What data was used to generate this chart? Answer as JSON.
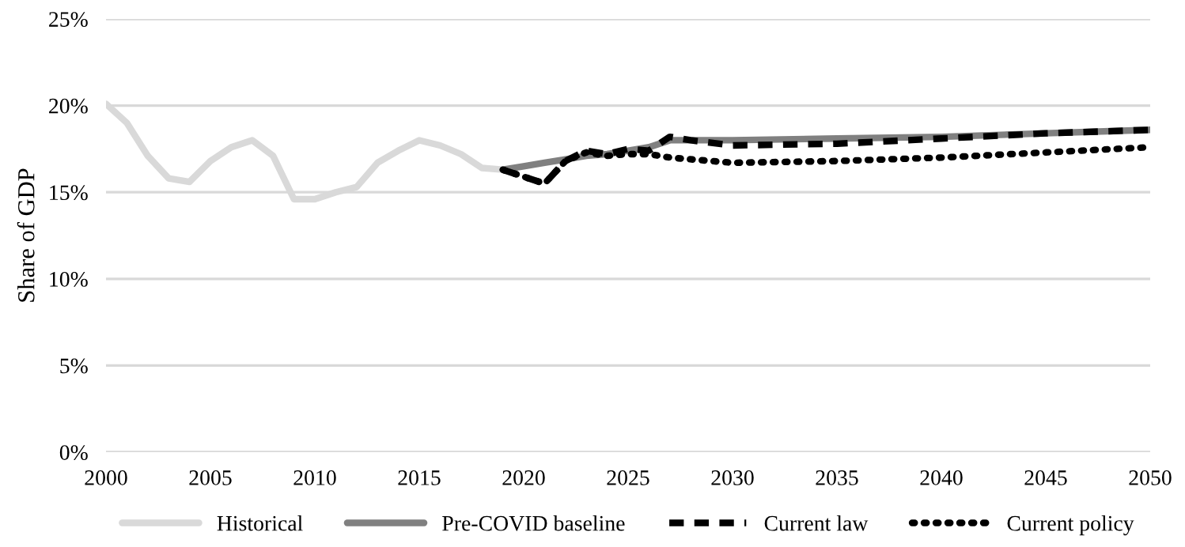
{
  "chart_data": {
    "type": "line",
    "ylabel": "Share of GDP",
    "xlim": [
      2000,
      2050
    ],
    "xticks": [
      2000,
      2005,
      2010,
      2015,
      2020,
      2025,
      2030,
      2035,
      2040,
      2045,
      2050
    ],
    "ylim": [
      0,
      25
    ],
    "yticks": [
      {
        "value": 0,
        "label": "0%"
      },
      {
        "value": 5,
        "label": "5%"
      },
      {
        "value": 10,
        "label": "10%"
      },
      {
        "value": 15,
        "label": "15%"
      },
      {
        "value": 20,
        "label": "20%"
      },
      {
        "value": 25,
        "label": "25%"
      }
    ],
    "grid": "y",
    "legend": "bottom",
    "series": [
      {
        "name": "Historical",
        "color": "#d9d9d9",
        "line_style": "solid",
        "x": [
          2000,
          2001,
          2002,
          2003,
          2004,
          2005,
          2006,
          2007,
          2008,
          2009,
          2010,
          2011,
          2012,
          2013,
          2014,
          2015,
          2016,
          2017,
          2018,
          2019
        ],
        "values": [
          20.1,
          19.0,
          17.1,
          15.8,
          15.6,
          16.8,
          17.6,
          18.0,
          17.1,
          14.6,
          14.6,
          15.0,
          15.3,
          16.7,
          17.4,
          18.0,
          17.7,
          17.2,
          16.4,
          16.3
        ]
      },
      {
        "name": "Pre-COVID baseline",
        "color": "#808080",
        "line_style": "solid",
        "x": [
          2019,
          2020,
          2021,
          2022,
          2023,
          2024,
          2025,
          2026,
          2027,
          2030,
          2035,
          2040,
          2045,
          2050
        ],
        "values": [
          16.3,
          16.5,
          16.7,
          16.9,
          17.1,
          17.2,
          17.4,
          17.6,
          18.0,
          18.0,
          18.1,
          18.2,
          18.4,
          18.6
        ]
      },
      {
        "name": "Current law",
        "color": "#000000",
        "line_style": "dashed",
        "x": [
          2019,
          2020,
          2021,
          2022,
          2023,
          2024,
          2025,
          2026,
          2027,
          2028,
          2030,
          2035,
          2040,
          2045,
          2050
        ],
        "values": [
          16.3,
          15.9,
          15.5,
          16.8,
          17.4,
          17.2,
          17.5,
          17.4,
          18.2,
          18.0,
          17.7,
          17.8,
          18.1,
          18.4,
          18.6
        ]
      },
      {
        "name": "Current policy",
        "color": "#000000",
        "line_style": "dotted",
        "x": [
          2019,
          2020,
          2021,
          2022,
          2023,
          2024,
          2025,
          2026,
          2027,
          2030,
          2035,
          2040,
          2045,
          2050
        ],
        "values": [
          16.3,
          15.9,
          15.5,
          16.8,
          17.3,
          17.1,
          17.2,
          17.2,
          17.0,
          16.7,
          16.8,
          17.0,
          17.3,
          17.6
        ]
      }
    ]
  }
}
